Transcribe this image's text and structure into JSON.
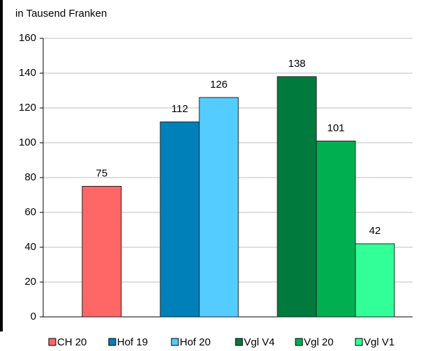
{
  "chart_data": {
    "type": "bar",
    "title": "in Tausend Franken",
    "categories": [
      "CH 20",
      "Hof 19",
      "Hof 20",
      "Vgl V4",
      "Vgl 20",
      "Vgl V1"
    ],
    "values": [
      75,
      112,
      126,
      138,
      101,
      42
    ],
    "colors": [
      "#ff6666",
      "#0080b8",
      "#55ccff",
      "#007a3d",
      "#00b050",
      "#33ff99"
    ],
    "ylim": [
      0,
      160
    ],
    "yticks": [
      0,
      20,
      40,
      60,
      80,
      100,
      120,
      140,
      160
    ],
    "grid": true,
    "legend": "bottom"
  }
}
